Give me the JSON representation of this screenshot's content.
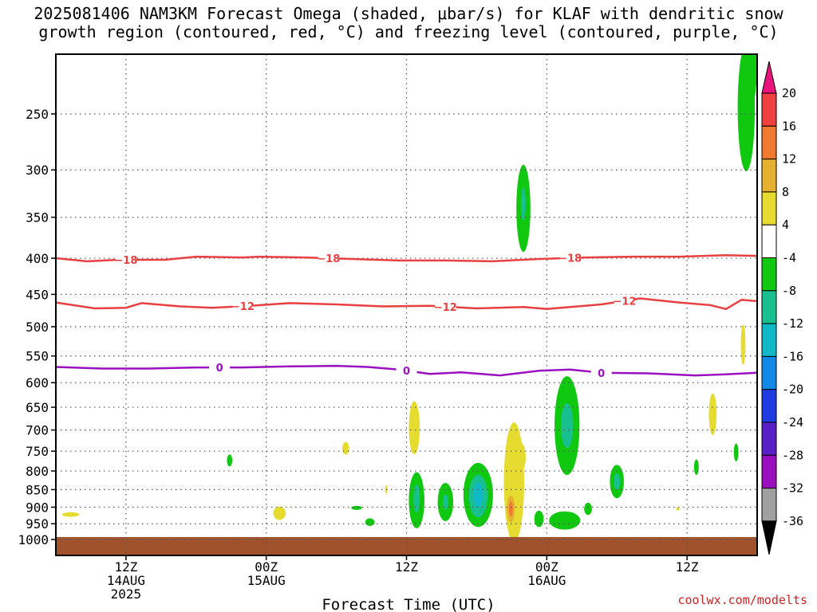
{
  "title": {
    "line1": "2025081406 NAM3KM Forecast Omega (shaded, μbar/s) for KLAF with dendritic snow",
    "line2": "growth region (contoured, red, °C) and freezing level (contoured, purple, °C)"
  },
  "credit": "coolwx.com/modelts",
  "chart_data": {
    "type": "time-height",
    "xlabel": "Forecast Time (UTC)",
    "x_range_hours": [
      0,
      90
    ],
    "x_ticks": [
      {
        "h": 9,
        "lines": [
          "12Z",
          "14AUG",
          "2025"
        ]
      },
      {
        "h": 27,
        "lines": [
          "00Z",
          "15AUG"
        ]
      },
      {
        "h": 45,
        "lines": [
          "12Z"
        ]
      },
      {
        "h": 63,
        "lines": [
          "00Z",
          "16AUG"
        ]
      },
      {
        "h": 81,
        "lines": [
          "12Z"
        ]
      }
    ],
    "y_axis": {
      "scale": "log-pressure",
      "ylim_hPa": [
        1030,
        200
      ],
      "ticks": [
        250,
        300,
        350,
        400,
        450,
        500,
        550,
        600,
        650,
        700,
        750,
        800,
        850,
        900,
        950,
        1000
      ]
    },
    "grid": "dotted",
    "colorbar": {
      "labels": [
        "20",
        "16",
        "12",
        "8",
        "4",
        "-4",
        "-8",
        "-12",
        "-16",
        "-20",
        "-24",
        "-28",
        "-32",
        "-36"
      ],
      "colors": [
        "#e8147c",
        "#f04040",
        "#f07a30",
        "#e6b030",
        "#e6dc30",
        "#ffffff",
        "#10c810",
        "#18c090",
        "#10b8c8",
        "#1488e8",
        "#1e3ce0",
        "#5a20c8",
        "#9a10c0",
        "#a0a0a0",
        "#000000"
      ]
    },
    "contours": [
      {
        "name": "dgz",
        "value": -18,
        "color": "#e84040",
        "points": [
          [
            0,
            400
          ],
          [
            4,
            404
          ],
          [
            8,
            402
          ],
          [
            14,
            402
          ],
          [
            18,
            398
          ],
          [
            24,
            399
          ],
          [
            26,
            398
          ],
          [
            32,
            399
          ],
          [
            38,
            401
          ],
          [
            44,
            403
          ],
          [
            50,
            403
          ],
          [
            56,
            404
          ],
          [
            62,
            401
          ],
          [
            68,
            399
          ],
          [
            74,
            398
          ],
          [
            80,
            398
          ],
          [
            86,
            396
          ],
          [
            90,
            397
          ]
        ],
        "labels": [
          9,
          35,
          66
        ]
      },
      {
        "name": "dgz",
        "value": -12,
        "color": "#e84040",
        "points": [
          [
            0,
            462
          ],
          [
            5,
            471
          ],
          [
            9,
            470
          ],
          [
            11,
            463
          ],
          [
            16,
            468
          ],
          [
            20,
            470
          ],
          [
            25,
            467
          ],
          [
            30,
            463
          ],
          [
            36,
            465
          ],
          [
            42,
            468
          ],
          [
            48,
            467
          ],
          [
            54,
            471
          ],
          [
            60,
            469
          ],
          [
            63,
            472
          ],
          [
            66,
            469
          ],
          [
            70,
            465
          ],
          [
            75,
            456
          ],
          [
            80,
            462
          ],
          [
            84,
            466
          ],
          [
            86,
            472
          ],
          [
            88,
            458
          ],
          [
            90,
            460
          ]
        ],
        "labels": [
          24,
          50,
          73
        ]
      },
      {
        "name": "freezing level",
        "value": 0,
        "color": "#9a10c0",
        "points": [
          [
            0,
            570
          ],
          [
            6,
            573
          ],
          [
            12,
            573
          ],
          [
            18,
            571
          ],
          [
            24,
            571
          ],
          [
            30,
            569
          ],
          [
            36,
            568
          ],
          [
            40,
            570
          ],
          [
            44,
            575
          ],
          [
            48,
            583
          ],
          [
            52,
            580
          ],
          [
            57,
            586
          ],
          [
            62,
            577
          ],
          [
            66,
            575
          ],
          [
            70,
            581
          ],
          [
            76,
            582
          ],
          [
            82,
            586
          ],
          [
            86,
            584
          ],
          [
            90,
            581
          ]
        ],
        "labels": [
          21,
          45,
          70
        ]
      }
    ],
    "omega_blobs": [
      {
        "h": 88.6,
        "p": 245,
        "dh": 1.1,
        "dp": 50,
        "v": -6
      },
      {
        "h": 89.3,
        "p": 210,
        "dh": 0.7,
        "dp": 30,
        "v": -6
      },
      {
        "h": 60.0,
        "p": 340,
        "dh": 0.9,
        "dp": 48,
        "v": -6
      },
      {
        "h": 60.0,
        "p": 335,
        "dh": 0.3,
        "dp": 18,
        "v": -8
      },
      {
        "h": 88.2,
        "p": 530,
        "dh": 0.3,
        "dp": 35,
        "v": 5
      },
      {
        "h": 84.3,
        "p": 665,
        "dh": 0.5,
        "dp": 45,
        "v": 5
      },
      {
        "h": 87.3,
        "p": 753,
        "dh": 0.3,
        "dp": 22,
        "v": -6
      },
      {
        "h": 82.2,
        "p": 790,
        "dh": 0.3,
        "dp": 20,
        "v": -6
      },
      {
        "h": 79.8,
        "p": 905,
        "dh": 0.2,
        "dp": 5,
        "v": 5
      },
      {
        "h": 1.9,
        "p": 922,
        "dh": 1.1,
        "dp": 7,
        "v": 5
      },
      {
        "h": 22.3,
        "p": 773,
        "dh": 0.35,
        "dp": 15,
        "v": -6
      },
      {
        "h": 37.2,
        "p": 743,
        "dh": 0.45,
        "dp": 15,
        "v": 5
      },
      {
        "h": 28.7,
        "p": 918,
        "dh": 0.8,
        "dp": 20,
        "v": 5
      },
      {
        "h": 38.6,
        "p": 902,
        "dh": 0.7,
        "dp": 6,
        "v": -6
      },
      {
        "h": 40.3,
        "p": 945,
        "dh": 0.6,
        "dp": 12,
        "v": -6
      },
      {
        "h": 42.4,
        "p": 850,
        "dh": 0.15,
        "dp": 12,
        "v": 5
      },
      {
        "h": 46.0,
        "p": 695,
        "dh": 0.7,
        "dp": 60,
        "v": 5
      },
      {
        "h": 46.3,
        "p": 880,
        "dh": 1.0,
        "dp": 80,
        "v": -6
      },
      {
        "h": 46.3,
        "p": 875,
        "dh": 0.4,
        "dp": 40,
        "v": -9
      },
      {
        "h": 50.0,
        "p": 885,
        "dh": 1.0,
        "dp": 55,
        "v": -6
      },
      {
        "h": 50.0,
        "p": 885,
        "dh": 0.35,
        "dp": 22,
        "v": -9
      },
      {
        "h": 54.2,
        "p": 865,
        "dh": 1.9,
        "dp": 90,
        "v": -6
      },
      {
        "h": 54.2,
        "p": 868,
        "dh": 1.2,
        "dp": 60,
        "v": -11
      },
      {
        "h": 54.2,
        "p": 865,
        "dh": 0.6,
        "dp": 35,
        "v": -14
      },
      {
        "h": 58.8,
        "p": 830,
        "dh": 1.3,
        "dp": 160,
        "v": 6
      },
      {
        "h": 59.5,
        "p": 765,
        "dh": 0.8,
        "dp": 40,
        "v": 6
      },
      {
        "h": 58.4,
        "p": 905,
        "dh": 0.5,
        "dp": 40,
        "v": 10
      },
      {
        "h": 58.4,
        "p": 905,
        "dh": 0.25,
        "dp": 22,
        "v": 15
      },
      {
        "h": 65.6,
        "p": 690,
        "dh": 1.6,
        "dp": 110,
        "v": -6
      },
      {
        "h": 65.6,
        "p": 690,
        "dh": 0.8,
        "dp": 50,
        "v": -9
      },
      {
        "h": 65.3,
        "p": 940,
        "dh": 2.0,
        "dp": 28,
        "v": -6
      },
      {
        "h": 62.0,
        "p": 935,
        "dh": 0.6,
        "dp": 25,
        "v": -6
      },
      {
        "h": 68.3,
        "p": 905,
        "dh": 0.5,
        "dp": 18,
        "v": -6
      },
      {
        "h": 72.0,
        "p": 828,
        "dh": 0.9,
        "dp": 45,
        "v": -6
      },
      {
        "h": 72.0,
        "p": 828,
        "dh": 0.4,
        "dp": 22,
        "v": -9
      }
    ],
    "terrain": {
      "color": "#a0522d",
      "top_hPa": 992
    }
  }
}
